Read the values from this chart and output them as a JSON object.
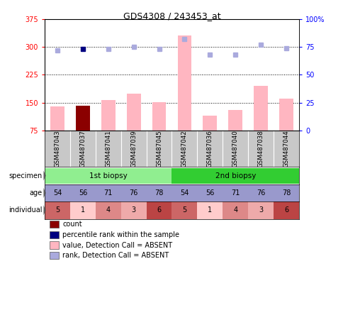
{
  "title": "GDS4308 / 243453_at",
  "samples": [
    "GSM487043",
    "GSM487037",
    "GSM487041",
    "GSM487039",
    "GSM487045",
    "GSM487042",
    "GSM487036",
    "GSM487040",
    "GSM487038",
    "GSM487044"
  ],
  "bar_values": [
    140,
    143,
    158,
    175,
    152,
    330,
    115,
    130,
    195,
    162
  ],
  "bar_colors": [
    "#ffb6c1",
    "#8b0000",
    "#ffb6c1",
    "#ffb6c1",
    "#ffb6c1",
    "#ffb6c1",
    "#ffb6c1",
    "#ffb6c1",
    "#ffb6c1",
    "#ffb6c1"
  ],
  "rank_values": [
    72,
    73,
    73,
    75,
    73,
    82,
    68,
    68,
    77,
    74
  ],
  "rank_colors": [
    "#aaaadd",
    "#000080",
    "#aaaadd",
    "#aaaadd",
    "#aaaadd",
    "#aaaadd",
    "#aaaadd",
    "#aaaadd",
    "#aaaadd",
    "#aaaadd"
  ],
  "ylim_left": [
    75,
    375
  ],
  "ylim_right": [
    0,
    100
  ],
  "yticks_left": [
    75,
    150,
    225,
    300,
    375
  ],
  "yticks_right": [
    0,
    25,
    50,
    75,
    100
  ],
  "specimen_colors": [
    "#90ee90",
    "#32cd32"
  ],
  "age_color": "#9999cc",
  "individual_colors": [
    "#cc6666",
    "#ffcccc",
    "#dd8888",
    "#eeaaaa",
    "#bb4444",
    "#cc6666",
    "#ffcccc",
    "#dd8888",
    "#eeaaaa",
    "#bb4444"
  ],
  "legend_items": [
    {
      "color": "#8b0000",
      "label": "count"
    },
    {
      "color": "#000080",
      "label": "percentile rank within the sample"
    },
    {
      "color": "#ffb6c1",
      "label": "value, Detection Call = ABSENT"
    },
    {
      "color": "#aaaadd",
      "label": "rank, Detection Call = ABSENT"
    }
  ]
}
